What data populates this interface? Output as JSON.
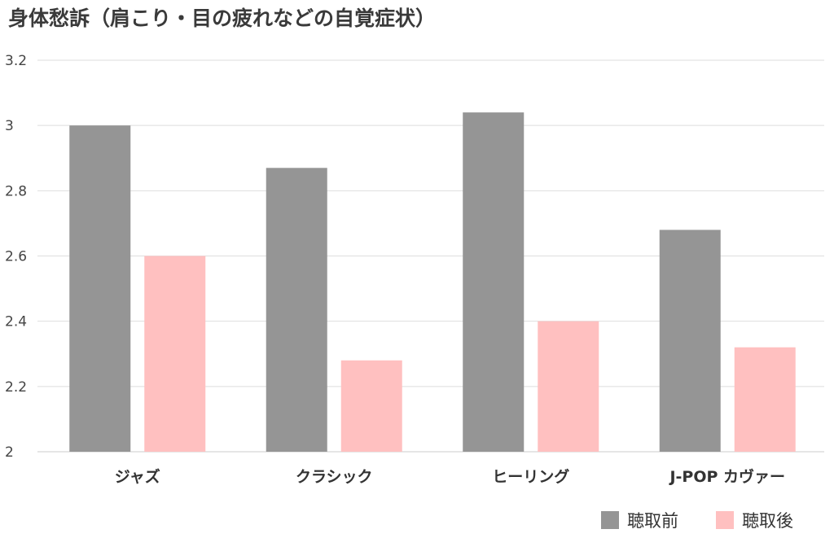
{
  "chart_data": {
    "type": "bar",
    "title": "身体愁訴（肩こり・目の疲れなどの自覚症状）",
    "categories": [
      "ジャズ",
      "クラシック",
      "ヒーリング",
      "J-POP カヴァー"
    ],
    "series": [
      {
        "name": "聴取前",
        "values": [
          3.0,
          2.87,
          3.04,
          2.68
        ],
        "color": "#959595"
      },
      {
        "name": "聴取後",
        "values": [
          2.6,
          2.28,
          2.4,
          2.32
        ],
        "color": "#ffc0c0"
      }
    ],
    "ylim": [
      2,
      3.2
    ],
    "yticks": [
      "2",
      "2.2",
      "2.4",
      "2.6",
      "2.8",
      "3",
      "3.2"
    ],
    "grid": true,
    "legend_position": "bottom-right",
    "xlabel": "",
    "ylabel": ""
  }
}
